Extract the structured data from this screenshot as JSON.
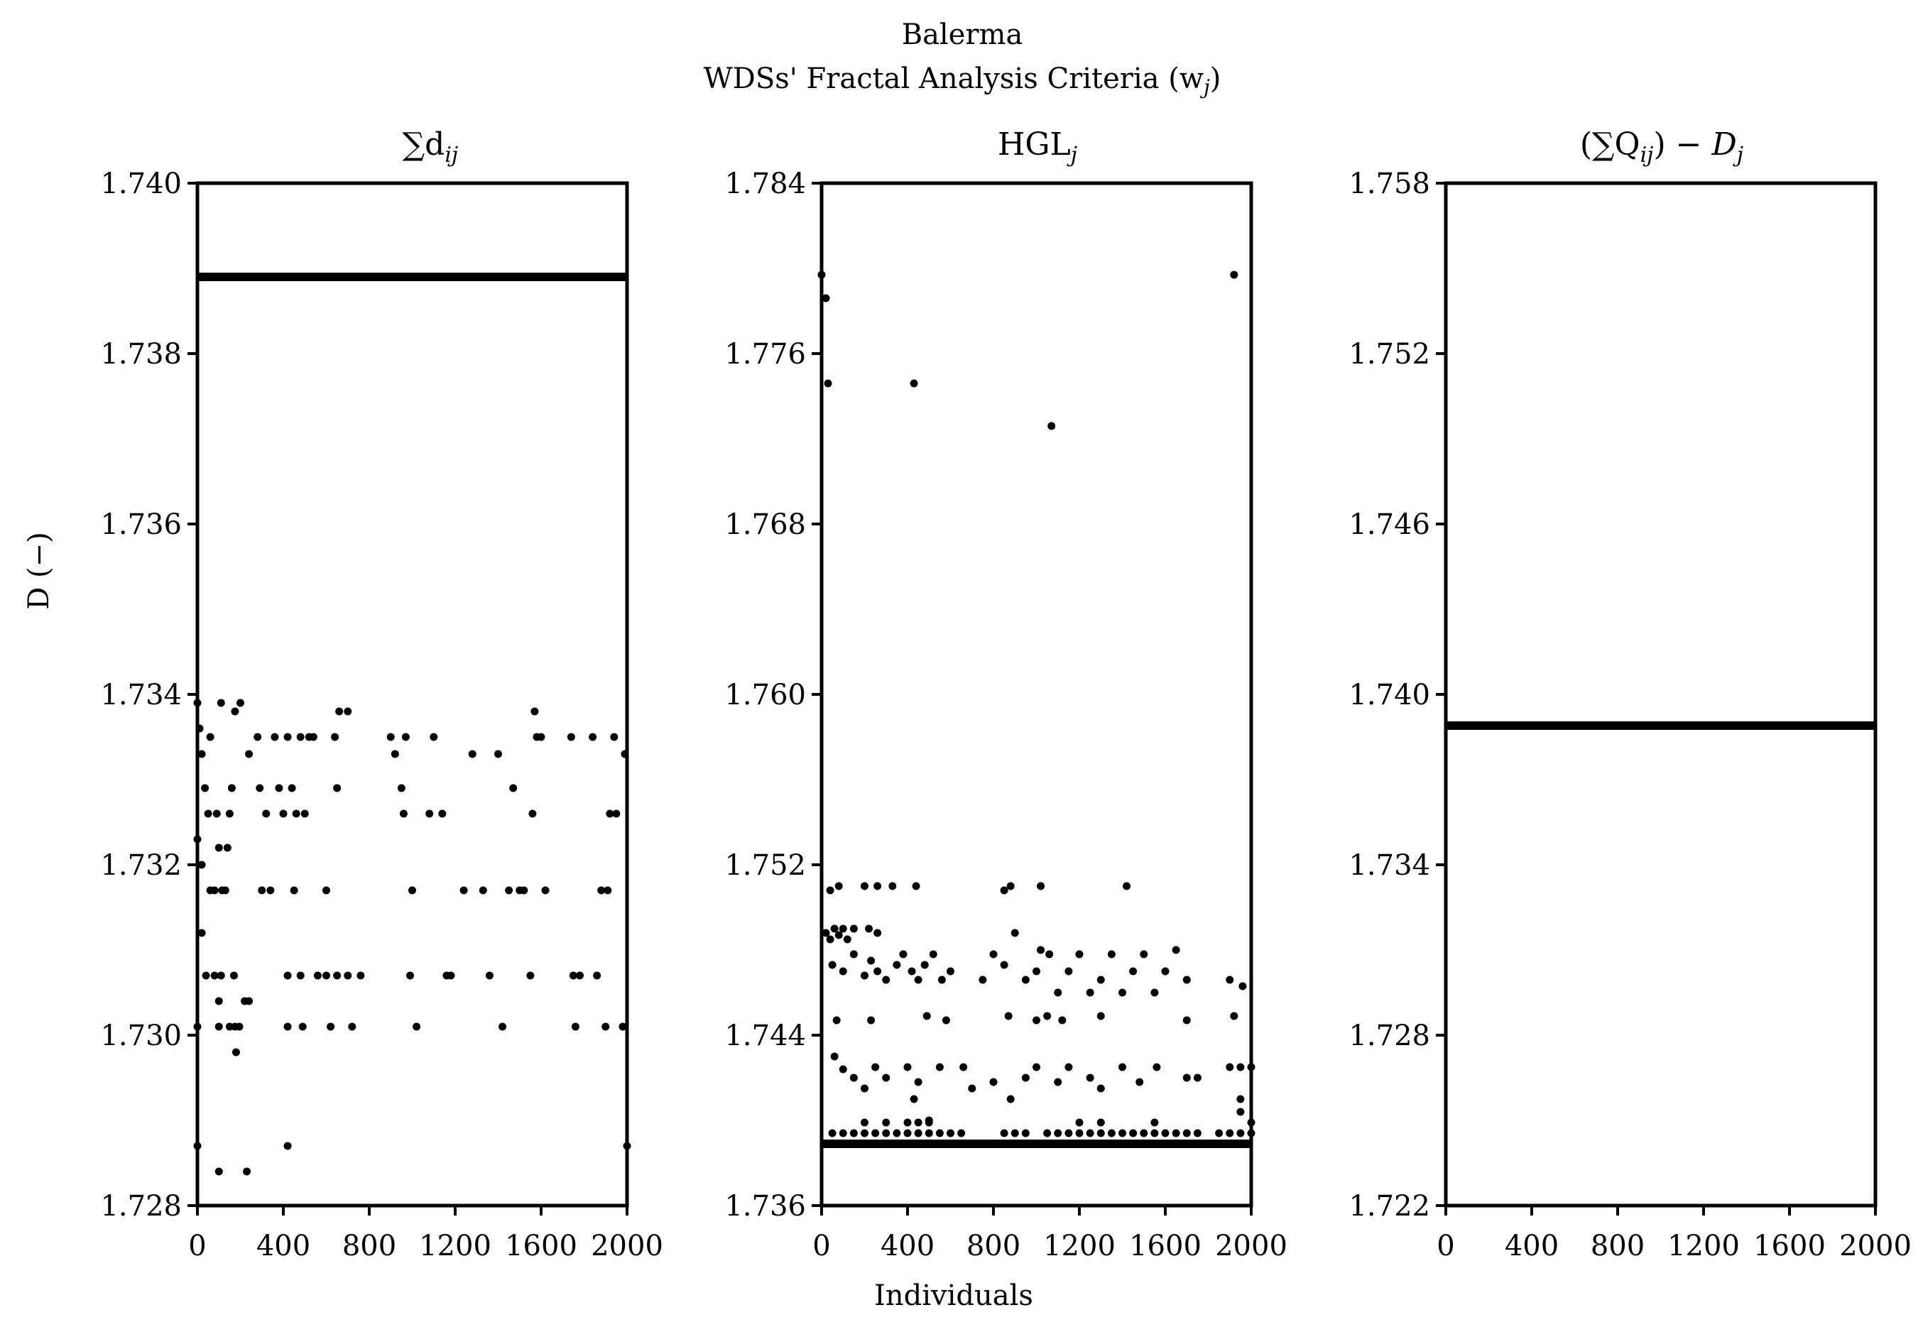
{
  "figure": {
    "title_line1": "Balerma",
    "title_line2_main": "WDSs' Fractal Analysis Criteria (w",
    "title_line2_sub": "j",
    "title_line2_end": ")",
    "ylabel": "D (−)",
    "xlabel": "Individuals"
  },
  "chart_data": [
    {
      "type": "scatter",
      "title_main": "∑d",
      "title_sub": "ij",
      "xlim": [
        0,
        2000
      ],
      "ylim": [
        1.728,
        1.74
      ],
      "xticks": [
        "0",
        "400",
        "800",
        "1200",
        "1600",
        "2000"
      ],
      "yticks": [
        "1.728",
        "1.730",
        "1.732",
        "1.734",
        "1.736",
        "1.738",
        "1.740"
      ],
      "hline": 1.7389,
      "points": [
        [
          0,
          1.7339
        ],
        [
          10,
          1.7336
        ],
        [
          20,
          1.7333
        ],
        [
          35,
          1.7329
        ],
        [
          50,
          1.7326
        ],
        [
          0,
          1.7323
        ],
        [
          20,
          1.732
        ],
        [
          60,
          1.7335
        ],
        [
          90,
          1.7326
        ],
        [
          100,
          1.7322
        ],
        [
          115,
          1.7317
        ],
        [
          140,
          1.7322
        ],
        [
          150,
          1.7326
        ],
        [
          160,
          1.7329
        ],
        [
          175,
          1.7338
        ],
        [
          200,
          1.7339
        ],
        [
          110,
          1.7339
        ],
        [
          60,
          1.7317
        ],
        [
          80,
          1.7317
        ],
        [
          130,
          1.7317
        ],
        [
          20,
          1.7312
        ],
        [
          40,
          1.7307
        ],
        [
          80,
          1.7307
        ],
        [
          110,
          1.7307
        ],
        [
          170,
          1.7307
        ],
        [
          100,
          1.7304
        ],
        [
          220,
          1.7304
        ],
        [
          240,
          1.7304
        ],
        [
          0,
          1.7301
        ],
        [
          100,
          1.7301
        ],
        [
          150,
          1.7301
        ],
        [
          175,
          1.7301
        ],
        [
          195,
          1.7301
        ],
        [
          180,
          1.7298
        ],
        [
          0,
          1.7287
        ],
        [
          100,
          1.7284
        ],
        [
          230,
          1.7284
        ],
        [
          420,
          1.7287
        ],
        [
          240,
          1.7333
        ],
        [
          280,
          1.7335
        ],
        [
          290,
          1.7329
        ],
        [
          300,
          1.7317
        ],
        [
          340,
          1.7317
        ],
        [
          320,
          1.7326
        ],
        [
          360,
          1.7335
        ],
        [
          380,
          1.7329
        ],
        [
          400,
          1.7326
        ],
        [
          420,
          1.7335
        ],
        [
          440,
          1.7329
        ],
        [
          450,
          1.7317
        ],
        [
          460,
          1.7326
        ],
        [
          480,
          1.7335
        ],
        [
          500,
          1.7326
        ],
        [
          520,
          1.7335
        ],
        [
          540,
          1.7335
        ],
        [
          420,
          1.7307
        ],
        [
          480,
          1.7307
        ],
        [
          560,
          1.7307
        ],
        [
          600,
          1.7307
        ],
        [
          650,
          1.7307
        ],
        [
          700,
          1.7307
        ],
        [
          760,
          1.7307
        ],
        [
          420,
          1.7301
        ],
        [
          490,
          1.7301
        ],
        [
          620,
          1.7301
        ],
        [
          720,
          1.7301
        ],
        [
          600,
          1.7317
        ],
        [
          650,
          1.7329
        ],
        [
          660,
          1.7338
        ],
        [
          700,
          1.7338
        ],
        [
          640,
          1.7335
        ],
        [
          900,
          1.7335
        ],
        [
          920,
          1.7333
        ],
        [
          950,
          1.7329
        ],
        [
          960,
          1.7326
        ],
        [
          970,
          1.7335
        ],
        [
          990,
          1.7307
        ],
        [
          1000,
          1.7317
        ],
        [
          1020,
          1.7301
        ],
        [
          1080,
          1.7326
        ],
        [
          1100,
          1.7335
        ],
        [
          1140,
          1.7326
        ],
        [
          1160,
          1.7307
        ],
        [
          1180,
          1.7307
        ],
        [
          1240,
          1.7317
        ],
        [
          1280,
          1.7333
        ],
        [
          1330,
          1.7317
        ],
        [
          1360,
          1.7307
        ],
        [
          1400,
          1.7333
        ],
        [
          1420,
          1.7301
        ],
        [
          1450,
          1.7317
        ],
        [
          1470,
          1.7329
        ],
        [
          1500,
          1.7317
        ],
        [
          1520,
          1.7317
        ],
        [
          1550,
          1.7307
        ],
        [
          1560,
          1.7326
        ],
        [
          1570,
          1.7338
        ],
        [
          1580,
          1.7335
        ],
        [
          1600,
          1.7335
        ],
        [
          1620,
          1.7317
        ],
        [
          1740,
          1.7335
        ],
        [
          1750,
          1.7307
        ],
        [
          1760,
          1.7301
        ],
        [
          1780,
          1.7307
        ],
        [
          1840,
          1.7335
        ],
        [
          1860,
          1.7307
        ],
        [
          1880,
          1.7317
        ],
        [
          1900,
          1.7301
        ],
        [
          1910,
          1.7317
        ],
        [
          1920,
          1.7326
        ],
        [
          1940,
          1.7335
        ],
        [
          1950,
          1.7326
        ],
        [
          1980,
          1.7301
        ],
        [
          1990,
          1.7333
        ],
        [
          2000,
          1.7287
        ]
      ]
    },
    {
      "type": "scatter",
      "title_main": "HGL",
      "title_sub": "j",
      "xlim": [
        0,
        2000
      ],
      "ylim": [
        1.736,
        1.784
      ],
      "xticks": [
        "0",
        "400",
        "800",
        "1200",
        "1600",
        "2000"
      ],
      "yticks": [
        "1.736",
        "1.744",
        "1.752",
        "1.760",
        "1.768",
        "1.776",
        "1.784"
      ],
      "hline": 1.7389,
      "points": [
        [
          0,
          1.7797
        ],
        [
          20,
          1.7786
        ],
        [
          30,
          1.7746
        ],
        [
          430,
          1.7746
        ],
        [
          1070,
          1.7726
        ],
        [
          1920,
          1.7797
        ],
        [
          40,
          1.7508
        ],
        [
          80,
          1.751
        ],
        [
          200,
          1.751
        ],
        [
          260,
          1.751
        ],
        [
          330,
          1.751
        ],
        [
          440,
          1.751
        ],
        [
          850,
          1.7508
        ],
        [
          880,
          1.751
        ],
        [
          1020,
          1.751
        ],
        [
          1420,
          1.751
        ],
        [
          20,
          1.7488
        ],
        [
          40,
          1.7485
        ],
        [
          60,
          1.749
        ],
        [
          80,
          1.7487
        ],
        [
          100,
          1.749
        ],
        [
          120,
          1.7485
        ],
        [
          150,
          1.749
        ],
        [
          220,
          1.749
        ],
        [
          260,
          1.7488
        ],
        [
          50,
          1.7473
        ],
        [
          100,
          1.747
        ],
        [
          150,
          1.7478
        ],
        [
          200,
          1.7468
        ],
        [
          230,
          1.7475
        ],
        [
          260,
          1.747
        ],
        [
          300,
          1.7466
        ],
        [
          350,
          1.7473
        ],
        [
          380,
          1.7478
        ],
        [
          420,
          1.747
        ],
        [
          450,
          1.7466
        ],
        [
          480,
          1.7473
        ],
        [
          520,
          1.7478
        ],
        [
          560,
          1.7466
        ],
        [
          600,
          1.747
        ],
        [
          750,
          1.7466
        ],
        [
          800,
          1.7478
        ],
        [
          850,
          1.7473
        ],
        [
          900,
          1.7488
        ],
        [
          950,
          1.7466
        ],
        [
          1000,
          1.747
        ],
        [
          1020,
          1.748
        ],
        [
          1060,
          1.7478
        ],
        [
          1100,
          1.746
        ],
        [
          1150,
          1.747
        ],
        [
          1200,
          1.7478
        ],
        [
          1250,
          1.746
        ],
        [
          1300,
          1.7466
        ],
        [
          1350,
          1.7478
        ],
        [
          1400,
          1.746
        ],
        [
          1450,
          1.747
        ],
        [
          1500,
          1.7478
        ],
        [
          1550,
          1.746
        ],
        [
          1600,
          1.747
        ],
        [
          1650,
          1.748
        ],
        [
          1700,
          1.7466
        ],
        [
          1900,
          1.7466
        ],
        [
          1960,
          1.7463
        ],
        [
          70,
          1.7447
        ],
        [
          230,
          1.7447
        ],
        [
          490,
          1.7449
        ],
        [
          580,
          1.7447
        ],
        [
          870,
          1.7449
        ],
        [
          1000,
          1.7447
        ],
        [
          1050,
          1.7449
        ],
        [
          1120,
          1.7447
        ],
        [
          1300,
          1.7449
        ],
        [
          1700,
          1.7447
        ],
        [
          1920,
          1.7449
        ],
        [
          60,
          1.743
        ],
        [
          100,
          1.7424
        ],
        [
          150,
          1.742
        ],
        [
          200,
          1.7415
        ],
        [
          250,
          1.7425
        ],
        [
          300,
          1.742
        ],
        [
          400,
          1.7425
        ],
        [
          450,
          1.7418
        ],
        [
          550,
          1.7425
        ],
        [
          660,
          1.7425
        ],
        [
          700,
          1.7415
        ],
        [
          800,
          1.7418
        ],
        [
          880,
          1.741
        ],
        [
          950,
          1.742
        ],
        [
          1000,
          1.7425
        ],
        [
          1100,
          1.7418
        ],
        [
          1150,
          1.7425
        ],
        [
          1250,
          1.742
        ],
        [
          1300,
          1.7415
        ],
        [
          1400,
          1.7425
        ],
        [
          1480,
          1.7418
        ],
        [
          1560,
          1.7425
        ],
        [
          1700,
          1.742
        ],
        [
          1750,
          1.742
        ],
        [
          1900,
          1.7425
        ],
        [
          1950,
          1.7425
        ],
        [
          2000,
          1.7425
        ],
        [
          1950,
          1.741
        ],
        [
          430,
          1.741
        ],
        [
          500,
          1.74
        ],
        [
          50,
          1.7394
        ],
        [
          100,
          1.7394
        ],
        [
          150,
          1.7394
        ],
        [
          200,
          1.7394
        ],
        [
          250,
          1.7394
        ],
        [
          300,
          1.7394
        ],
        [
          350,
          1.7394
        ],
        [
          400,
          1.7394
        ],
        [
          450,
          1.7394
        ],
        [
          500,
          1.7394
        ],
        [
          550,
          1.7394
        ],
        [
          600,
          1.7394
        ],
        [
          650,
          1.7394
        ],
        [
          850,
          1.7394
        ],
        [
          900,
          1.7394
        ],
        [
          950,
          1.7394
        ],
        [
          1050,
          1.7394
        ],
        [
          1100,
          1.7394
        ],
        [
          1150,
          1.7394
        ],
        [
          1200,
          1.7394
        ],
        [
          1250,
          1.7394
        ],
        [
          1300,
          1.7394
        ],
        [
          1350,
          1.7394
        ],
        [
          1400,
          1.7394
        ],
        [
          1450,
          1.7394
        ],
        [
          1500,
          1.7394
        ],
        [
          1550,
          1.7394
        ],
        [
          1600,
          1.7394
        ],
        [
          1650,
          1.7394
        ],
        [
          1700,
          1.7394
        ],
        [
          1750,
          1.7394
        ],
        [
          1850,
          1.7394
        ],
        [
          1900,
          1.7394
        ],
        [
          1950,
          1.7394
        ],
        [
          2000,
          1.7394
        ],
        [
          200,
          1.7399
        ],
        [
          300,
          1.7399
        ],
        [
          400,
          1.7399
        ],
        [
          450,
          1.7399
        ],
        [
          500,
          1.7399
        ],
        [
          1200,
          1.7399
        ],
        [
          1300,
          1.7399
        ],
        [
          1550,
          1.7399
        ],
        [
          1950,
          1.7404
        ],
        [
          2000,
          1.7399
        ]
      ]
    },
    {
      "type": "scatter",
      "title_pre": "(∑Q",
      "title_sub": "ij",
      "title_post": ") − ",
      "title_ital": "D",
      "title_sub2": "j",
      "xlim": [
        0,
        2000
      ],
      "ylim": [
        1.722,
        1.758
      ],
      "xticks": [
        "0",
        "400",
        "800",
        "1200",
        "1600",
        "2000"
      ],
      "yticks": [
        "1.722",
        "1.728",
        "1.734",
        "1.740",
        "1.746",
        "1.752",
        "1.758"
      ],
      "hline": 1.7389,
      "points": []
    }
  ]
}
